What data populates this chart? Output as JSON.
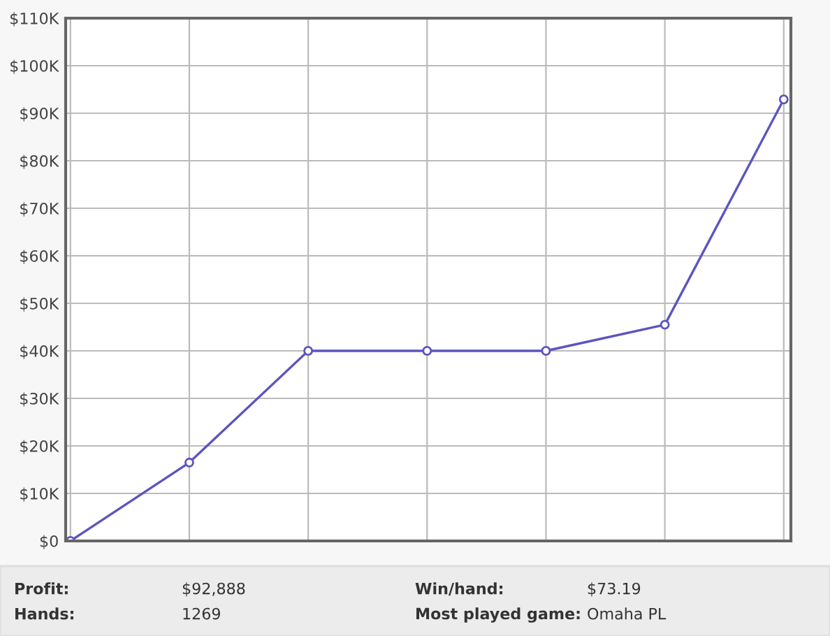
{
  "chart_data": {
    "type": "line",
    "categories": [
      null,
      null,
      null,
      null,
      null,
      null,
      null
    ],
    "series": [
      {
        "color": "#5b55c0",
        "values": [
          0,
          16500,
          40000,
          40000,
          40000,
          45500,
          92900
        ]
      }
    ],
    "ylim": [
      0,
      110000
    ],
    "yticks": [
      {
        "value": 0,
        "label": "$0"
      },
      {
        "value": 10000,
        "label": "$10K"
      },
      {
        "value": 20000,
        "label": "$20K"
      },
      {
        "value": 30000,
        "label": "$30K"
      },
      {
        "value": 40000,
        "label": "$40K"
      },
      {
        "value": 50000,
        "label": "$50K"
      },
      {
        "value": 60000,
        "label": "$60K"
      },
      {
        "value": 70000,
        "label": "$70K"
      },
      {
        "value": 80000,
        "label": "$80K"
      },
      {
        "value": 90000,
        "label": "$90K"
      },
      {
        "value": 100000,
        "label": "$100K"
      },
      {
        "value": 110000,
        "label": "$110K"
      }
    ],
    "grid": true,
    "marker": "circle",
    "line_style": "solid",
    "tick_labels": "y",
    "annotations": [
      "Profit:",
      "$92,888",
      "Win/hand:",
      "$73.19",
      "Hands:",
      "1269",
      "Most played game:",
      "Omaha PL"
    ]
  }
}
